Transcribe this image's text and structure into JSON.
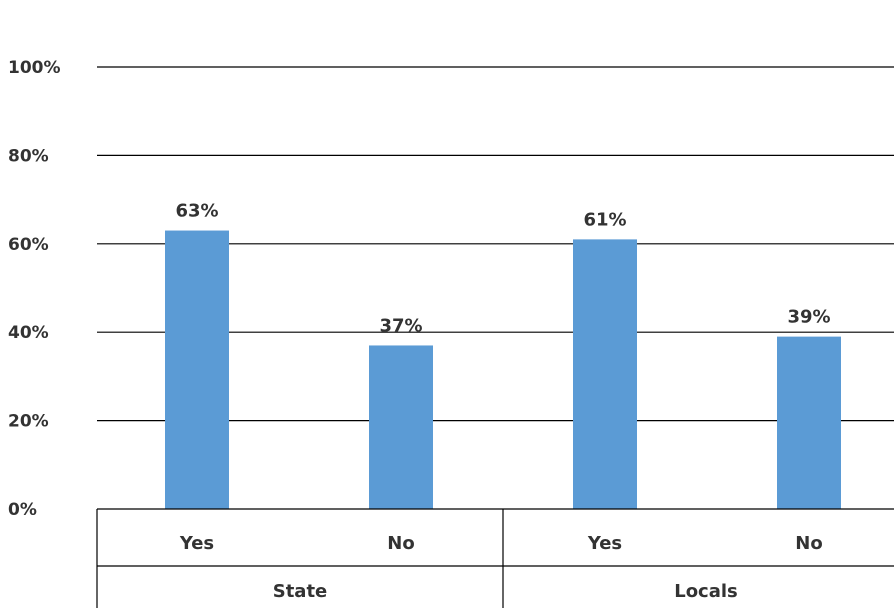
{
  "chart_data": {
    "type": "bar",
    "categories": [
      "Yes",
      "No",
      "Yes",
      "No"
    ],
    "groups": [
      {
        "label": "State",
        "categories": [
          "Yes",
          "No"
        ]
      },
      {
        "label": "Locals",
        "categories": [
          "Yes",
          "No"
        ]
      }
    ],
    "values": [
      63,
      37,
      61,
      39
    ],
    "data_labels": [
      "63%",
      "37%",
      "61%",
      "39%"
    ],
    "y_ticks": [
      "0%",
      "20%",
      "40%",
      "60%",
      "80%",
      "100%"
    ],
    "ylim": [
      0,
      100
    ],
    "grid": true,
    "colors": {
      "bar": "#5b9bd5",
      "grid": "#000000",
      "text": "#333333"
    }
  }
}
